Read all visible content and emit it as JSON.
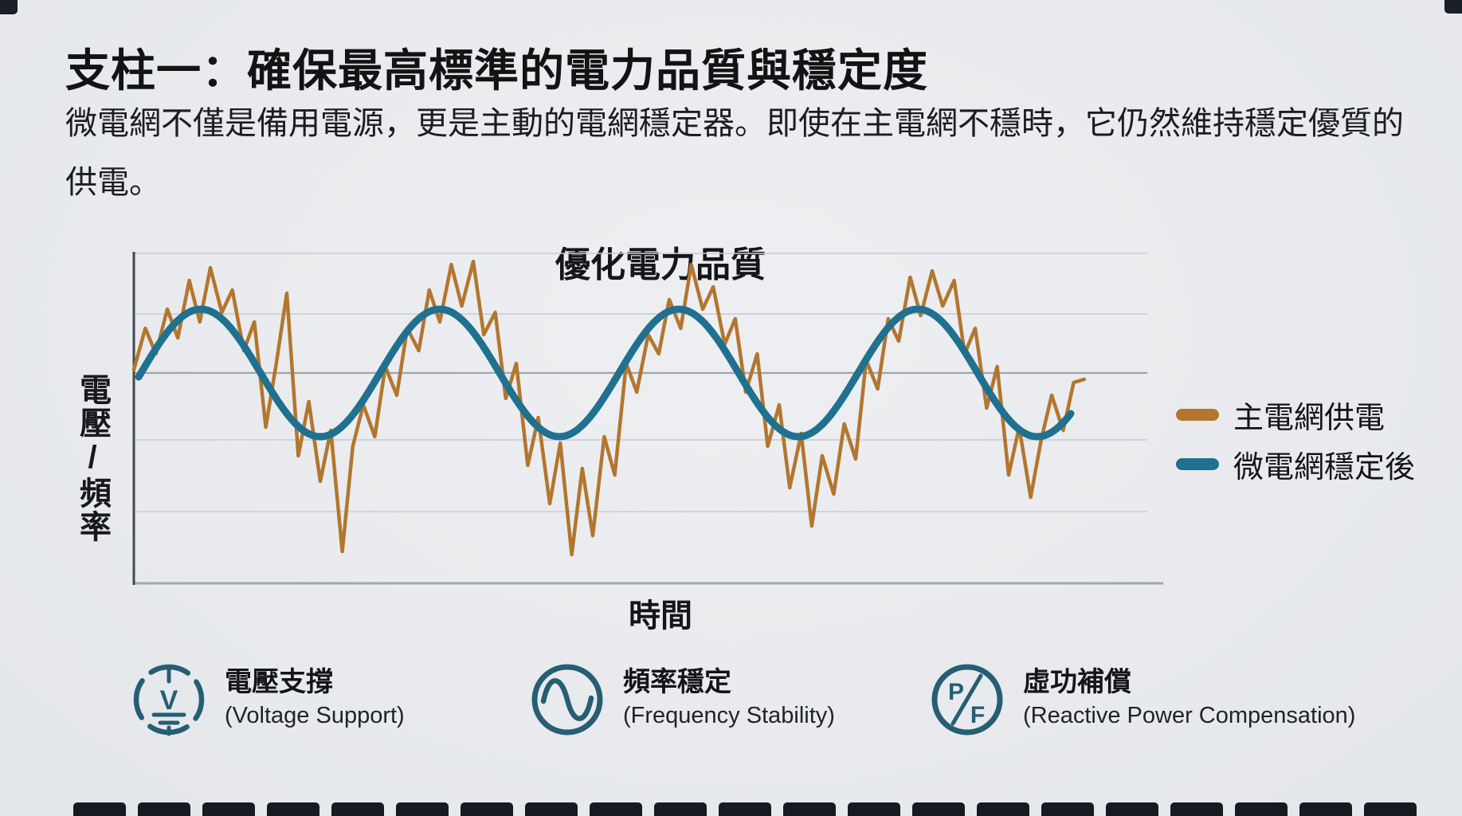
{
  "page": {
    "title": "支柱一：確保最高標準的電力品質與穩定度",
    "description": "微電網不僅是備用電源，更是主動的電網穩定器。即使在主電網不穩時，它仍然維持穩定優質的供電。"
  },
  "chart_data": {
    "type": "line",
    "title": "優化電力品質",
    "xlabel": "時間",
    "ylabel": "電壓/頻率",
    "x_range": [
      0,
      100
    ],
    "y_range": [
      -3.3,
      2.0
    ],
    "grid": true,
    "gridlines_y": [
      0.925,
      0,
      -1.05,
      -2.175
    ],
    "legend_position": "right",
    "series": [
      {
        "name": "主電網供電",
        "color": "#b3762e",
        "style": "noisy",
        "stroke_width": 4.5,
        "points": [
          [
            0,
            0.05
          ],
          [
            1.2,
            0.7
          ],
          [
            2.3,
            0.3
          ],
          [
            3.5,
            1.0
          ],
          [
            4.6,
            0.55
          ],
          [
            5.8,
            1.45
          ],
          [
            6.9,
            0.8
          ],
          [
            8,
            1.65
          ],
          [
            9.2,
            0.95
          ],
          [
            10.3,
            1.3
          ],
          [
            11.5,
            0.35
          ],
          [
            12.6,
            0.8
          ],
          [
            13.8,
            -0.85
          ],
          [
            14.9,
            0.15
          ],
          [
            16,
            1.25
          ],
          [
            17.2,
            -1.3
          ],
          [
            18.3,
            -0.45
          ],
          [
            19.5,
            -1.7
          ],
          [
            20.6,
            -0.9
          ],
          [
            21.8,
            -2.8
          ],
          [
            22.9,
            -1.15
          ],
          [
            24,
            -0.5
          ],
          [
            25.2,
            -1.0
          ],
          [
            26.3,
            0.1
          ],
          [
            27.5,
            -0.35
          ],
          [
            28.6,
            0.7
          ],
          [
            29.8,
            0.35
          ],
          [
            30.9,
            1.3
          ],
          [
            32,
            0.8
          ],
          [
            33.2,
            1.7
          ],
          [
            34.3,
            1.05
          ],
          [
            35.5,
            1.75
          ],
          [
            36.6,
            0.6
          ],
          [
            37.8,
            0.95
          ],
          [
            38.9,
            -0.4
          ],
          [
            40,
            0.15
          ],
          [
            41.2,
            -1.45
          ],
          [
            42.3,
            -0.7
          ],
          [
            43.5,
            -2.05
          ],
          [
            44.6,
            -1.1
          ],
          [
            45.8,
            -2.85
          ],
          [
            46.9,
            -1.5
          ],
          [
            48,
            -2.55
          ],
          [
            49.2,
            -1.0
          ],
          [
            50.3,
            -1.6
          ],
          [
            51.5,
            0.15
          ],
          [
            52.6,
            -0.3
          ],
          [
            53.8,
            0.6
          ],
          [
            54.9,
            0.3
          ],
          [
            56,
            1.15
          ],
          [
            57.2,
            0.7
          ],
          [
            58.3,
            1.7
          ],
          [
            59.5,
            1.0
          ],
          [
            60.6,
            1.35
          ],
          [
            61.8,
            0.45
          ],
          [
            62.9,
            0.85
          ],
          [
            64,
            -0.3
          ],
          [
            65.2,
            0.3
          ],
          [
            66.3,
            -1.15
          ],
          [
            67.5,
            -0.5
          ],
          [
            68.6,
            -1.8
          ],
          [
            69.8,
            -0.95
          ],
          [
            70.9,
            -2.4
          ],
          [
            72,
            -1.3
          ],
          [
            73.2,
            -1.9
          ],
          [
            74.3,
            -0.8
          ],
          [
            75.5,
            -1.35
          ],
          [
            76.6,
            0.2
          ],
          [
            77.8,
            -0.25
          ],
          [
            78.9,
            0.85
          ],
          [
            80,
            0.5
          ],
          [
            81.2,
            1.5
          ],
          [
            82.3,
            0.9
          ],
          [
            83.5,
            1.6
          ],
          [
            84.6,
            1.05
          ],
          [
            85.8,
            1.45
          ],
          [
            86.9,
            0.3
          ],
          [
            88,
            0.7
          ],
          [
            89.2,
            -0.55
          ],
          [
            90.3,
            0.1
          ],
          [
            91.5,
            -1.6
          ],
          [
            92.6,
            -0.85
          ],
          [
            93.8,
            -1.95
          ],
          [
            94.9,
            -1.05
          ],
          [
            96,
            -0.35
          ],
          [
            97.2,
            -0.9
          ],
          [
            98.3,
            -0.15
          ],
          [
            99.4,
            -0.1
          ]
        ]
      },
      {
        "name": "微電網穩定後",
        "color": "#20708f",
        "style": "smooth",
        "stroke_width": 9,
        "sine": {
          "amplitude": 1,
          "period": 25,
          "phase": 0.75,
          "x_start": 0.5,
          "x_end": 98
        }
      }
    ]
  },
  "features": [
    {
      "icon": "voltage-support-icon",
      "letter": "V",
      "title_zh": "電壓支撐",
      "title_en": "(Voltage Support)"
    },
    {
      "icon": "frequency-stability-icon",
      "title_zh": "頻率穩定",
      "title_en": "(Frequency Stability)"
    },
    {
      "icon": "reactive-power-icon",
      "letter_top": "P",
      "letter_bottom": "F",
      "title_zh": "虛功補償",
      "title_en": "(Reactive Power Compensation)"
    }
  ],
  "colors": {
    "background": "#e9ebee",
    "text": "#17191a",
    "icon_teal": "#265e73",
    "series_orange": "#b3762e",
    "series_blue": "#20708f"
  }
}
